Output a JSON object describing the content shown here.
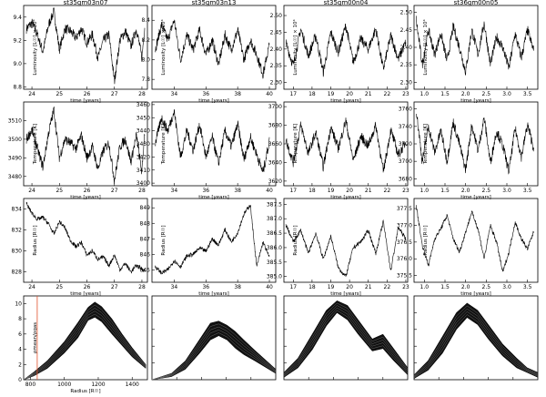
{
  "chart_data": [
    {
      "type": "line",
      "row": 0,
      "col": 0,
      "title": "st35gm03n07",
      "xlabel": "time [years]",
      "ylabel": "Luminosity [L☉] × 10⁴",
      "xlim": [
        23.7,
        28.2
      ],
      "ylim": [
        8.78,
        9.5
      ],
      "xticks": [
        "24",
        "25",
        "26",
        "27",
        "28"
      ],
      "yticks": [
        "8.8",
        "9.0",
        "9.2",
        "9.4"
      ],
      "x": [
        23.8,
        24.0,
        24.2,
        24.4,
        24.6,
        24.8,
        25.0,
        25.2,
        25.4,
        25.6,
        25.8,
        26.0,
        26.2,
        26.4,
        26.6,
        26.8,
        27.0,
        27.2,
        27.4,
        27.6,
        27.8,
        28.0,
        28.1
      ],
      "y": [
        9.3,
        9.35,
        9.25,
        9.1,
        9.33,
        9.45,
        9.12,
        9.3,
        9.28,
        9.22,
        9.3,
        9.18,
        9.25,
        9.05,
        9.2,
        9.25,
        8.85,
        9.2,
        9.28,
        9.15,
        9.3,
        9.05,
        9.32
      ]
    },
    {
      "type": "line",
      "row": 0,
      "col": 1,
      "title": "st35gm03n13",
      "xlabel": "time [years]",
      "ylabel": "Luminosity [L☉] × 10⁴",
      "xlim": [
        32.6,
        40.4
      ],
      "ylim": [
        7.7,
        8.55
      ],
      "xticks": [
        "34",
        "36",
        "38",
        "40"
      ],
      "yticks": [
        "7.8",
        "8.0",
        "8.2",
        "8.4"
      ],
      "x": [
        32.8,
        33.2,
        33.6,
        34.0,
        34.4,
        34.8,
        35.2,
        35.6,
        36.0,
        36.4,
        36.8,
        37.2,
        37.6,
        38.0,
        38.4,
        38.8,
        39.2,
        39.6,
        40.0
      ],
      "y": [
        8.1,
        8.35,
        8.2,
        8.4,
        8.0,
        8.25,
        8.1,
        8.3,
        8.05,
        8.2,
        7.95,
        8.25,
        8.1,
        8.3,
        8.0,
        8.2,
        8.05,
        7.85,
        8.15
      ]
    },
    {
      "type": "line",
      "row": 0,
      "col": 2,
      "title": "st35gm00n04",
      "xlabel": "time [years]",
      "ylabel": "Luminosity [L☉] × 10⁴",
      "xlim": [
        16.5,
        23.1
      ],
      "ylim": [
        2.28,
        2.53
      ],
      "xticks": [
        "17",
        "18",
        "19",
        "20",
        "21",
        "22",
        "23"
      ],
      "yticks": [
        "2.30",
        "2.35",
        "2.40",
        "2.45",
        "2.50"
      ],
      "x": [
        16.6,
        17.0,
        17.4,
        17.8,
        18.2,
        18.6,
        19.0,
        19.4,
        19.8,
        20.2,
        20.6,
        21.0,
        21.4,
        21.8,
        22.2,
        22.6,
        23.0
      ],
      "y": [
        2.42,
        2.35,
        2.46,
        2.38,
        2.44,
        2.33,
        2.45,
        2.39,
        2.47,
        2.36,
        2.43,
        2.4,
        2.46,
        2.34,
        2.44,
        2.37,
        2.42
      ]
    },
    {
      "type": "line",
      "row": 0,
      "col": 3,
      "title": "st36gm00n05",
      "xlabel": "time [years]",
      "ylabel": "Luminosity [L☉] × 10⁴",
      "xlim": [
        0.75,
        3.75
      ],
      "ylim": [
        2.28,
        2.52
      ],
      "xticks": [
        "1.0",
        "1.5",
        "2.0",
        "2.5",
        "3.0",
        "3.5"
      ],
      "yticks": [
        "2.30",
        "2.35",
        "2.40",
        "2.45",
        "2.50"
      ],
      "x": [
        0.8,
        0.95,
        1.1,
        1.25,
        1.4,
        1.55,
        1.7,
        1.85,
        2.0,
        2.15,
        2.3,
        2.45,
        2.6,
        2.75,
        2.9,
        3.05,
        3.2,
        3.35,
        3.5,
        3.65
      ],
      "y": [
        2.48,
        2.35,
        2.45,
        2.38,
        2.44,
        2.36,
        2.46,
        2.4,
        2.33,
        2.45,
        2.38,
        2.47,
        2.35,
        2.43,
        2.4,
        2.34,
        2.44,
        2.37,
        2.45,
        2.39
      ]
    },
    {
      "type": "line",
      "row": 1,
      "col": 0,
      "xlabel": "time [years]",
      "ylabel": "Temperature [K]",
      "xlim": [
        23.7,
        28.2
      ],
      "ylim": [
        3475,
        3520
      ],
      "xticks": [
        "24",
        "25",
        "26",
        "27",
        "28"
      ],
      "yticks": [
        "3480",
        "3490",
        "3500",
        "3510"
      ],
      "x": [
        23.8,
        24.0,
        24.2,
        24.4,
        24.6,
        24.8,
        25.0,
        25.2,
        25.4,
        25.6,
        25.8,
        26.0,
        26.2,
        26.4,
        26.6,
        26.8,
        27.0,
        27.2,
        27.4,
        27.6,
        27.8,
        28.0,
        28.1
      ],
      "y": [
        3500,
        3505,
        3495,
        3485,
        3503,
        3516,
        3490,
        3500,
        3498,
        3495,
        3502,
        3490,
        3496,
        3484,
        3494,
        3498,
        3478,
        3496,
        3500,
        3488,
        3502,
        3482,
        3504
      ]
    },
    {
      "type": "line",
      "row": 1,
      "col": 1,
      "xlabel": "time [years]",
      "ylabel": "Temperature [K]",
      "xlim": [
        32.6,
        40.4
      ],
      "ylim": [
        3398,
        3462
      ],
      "xticks": [
        "34",
        "36",
        "38",
        "40"
      ],
      "yticks": [
        "3400",
        "3410",
        "3420",
        "3430",
        "3440",
        "3450",
        "3460"
      ],
      "x": [
        32.8,
        33.2,
        33.6,
        34.0,
        34.4,
        34.8,
        35.2,
        35.6,
        36.0,
        36.4,
        36.8,
        37.2,
        37.6,
        38.0,
        38.4,
        38.8,
        39.2,
        39.6,
        40.0
      ],
      "y": [
        3430,
        3450,
        3440,
        3455,
        3420,
        3440,
        3425,
        3445,
        3420,
        3435,
        3415,
        3440,
        3428,
        3445,
        3418,
        3435,
        3422,
        3408,
        3432
      ]
    },
    {
      "type": "line",
      "row": 1,
      "col": 2,
      "xlabel": "time [years]",
      "ylabel": "Temperature [K]",
      "xlim": [
        16.5,
        23.1
      ],
      "ylim": [
        3615,
        3705
      ],
      "xticks": [
        "17",
        "18",
        "19",
        "20",
        "21",
        "22",
        "23"
      ],
      "yticks": [
        "3620",
        "3640",
        "3660",
        "3680",
        "3700"
      ],
      "x": [
        16.6,
        17.0,
        17.4,
        17.8,
        18.2,
        18.6,
        19.0,
        19.4,
        19.8,
        20.2,
        20.6,
        21.0,
        21.4,
        21.8,
        22.2,
        22.6,
        23.0
      ],
      "y": [
        3665,
        3640,
        3680,
        3650,
        3672,
        3635,
        3678,
        3655,
        3685,
        3642,
        3668,
        3658,
        3680,
        3630,
        3675,
        3648,
        3662
      ]
    },
    {
      "type": "line",
      "row": 1,
      "col": 3,
      "xlabel": "time [years]",
      "ylabel": "Temperature [K]",
      "xlim": [
        0.75,
        3.75
      ],
      "ylim": [
        3672,
        3768
      ],
      "xticks": [
        "1.0",
        "1.5",
        "2.0",
        "2.5",
        "3.0",
        "3.5"
      ],
      "yticks": [
        "3680",
        "3700",
        "3720",
        "3740",
        "3760"
      ],
      "x": [
        0.8,
        0.95,
        1.1,
        1.25,
        1.4,
        1.55,
        1.7,
        1.85,
        2.0,
        2.15,
        2.3,
        2.45,
        2.6,
        2.75,
        2.9,
        3.05,
        3.2,
        3.35,
        3.5,
        3.65
      ],
      "y": [
        3760,
        3700,
        3740,
        3710,
        3735,
        3700,
        3745,
        3720,
        3690,
        3742,
        3712,
        3750,
        3698,
        3735,
        3718,
        3688,
        3738,
        3705,
        3742,
        3715
      ]
    },
    {
      "type": "line",
      "row": 2,
      "col": 0,
      "xlabel": "time [years]",
      "ylabel": "Radius [R☉]",
      "xlim": [
        23.7,
        28.2
      ],
      "ylim": [
        827,
        835
      ],
      "xticks": [
        "24",
        "25",
        "26",
        "27",
        "28"
      ],
      "yticks": [
        "828",
        "830",
        "832",
        "834"
      ],
      "x": [
        23.8,
        24.0,
        24.2,
        24.4,
        24.6,
        24.8,
        25.0,
        25.2,
        25.4,
        25.6,
        25.8,
        26.0,
        26.2,
        26.4,
        26.6,
        26.8,
        27.0,
        27.2,
        27.4,
        27.6,
        27.8,
        28.0,
        28.1
      ],
      "y": [
        834.5,
        833.6,
        833.0,
        833.2,
        832.6,
        831.6,
        832.8,
        832.2,
        831.0,
        830.4,
        830.8,
        829.6,
        830.0,
        829.2,
        829.4,
        828.6,
        829.6,
        828.2,
        828.8,
        828.0,
        828.6,
        828.3,
        828.1
      ]
    },
    {
      "type": "line",
      "row": 2,
      "col": 1,
      "xlabel": "time [years]",
      "ylabel": "Radius [R☉]",
      "xlim": [
        32.6,
        40.4
      ],
      "ylim": [
        844.2,
        849.6
      ],
      "xticks": [
        "34",
        "36",
        "38",
        "40"
      ],
      "yticks": [
        "845",
        "846",
        "847",
        "848",
        "849"
      ],
      "x": [
        32.8,
        33.2,
        33.6,
        34.0,
        34.4,
        34.8,
        35.2,
        35.6,
        36.0,
        36.4,
        36.8,
        37.2,
        37.6,
        38.0,
        38.4,
        38.8,
        39.2,
        39.6,
        40.0
      ],
      "y": [
        845.2,
        844.8,
        845.0,
        845.6,
        845.2,
        845.9,
        846.0,
        846.4,
        846.2,
        847.0,
        846.6,
        847.6,
        846.8,
        847.4,
        848.6,
        849.2,
        845.2,
        846.8,
        845.8
      ]
    },
    {
      "type": "line",
      "row": 2,
      "col": 2,
      "xlabel": "time [years]",
      "ylabel": "Radius [R☉]",
      "xlim": [
        16.5,
        23.1
      ],
      "ylim": [
        384.8,
        387.7
      ],
      "xticks": [
        "17",
        "18",
        "19",
        "20",
        "21",
        "22",
        "23"
      ],
      "yticks": [
        "385.0",
        "385.5",
        "386.0",
        "386.5",
        "387.0",
        "387.5"
      ],
      "x": [
        16.6,
        17.0,
        17.4,
        17.8,
        18.2,
        18.6,
        19.0,
        19.4,
        19.8,
        20.2,
        20.6,
        21.0,
        21.4,
        21.8,
        22.2,
        22.6,
        23.0
      ],
      "y": [
        386.8,
        386.2,
        386.6,
        385.8,
        386.5,
        385.6,
        386.4,
        385.3,
        385.0,
        386.0,
        386.2,
        386.6,
        385.8,
        386.9,
        385.2,
        386.7,
        386.3
      ]
    },
    {
      "type": "line",
      "row": 2,
      "col": 3,
      "xlabel": "time [years]",
      "ylabel": "Radius [R☉]",
      "xlim": [
        0.75,
        3.75
      ],
      "ylim": [
        375.3,
        377.8
      ],
      "xticks": [
        "1.0",
        "1.5",
        "2.0",
        "2.5",
        "3.0",
        "3.5"
      ],
      "yticks": [
        "375.5",
        "376.0",
        "376.5",
        "377.0",
        "377.5"
      ],
      "x": [
        0.8,
        0.95,
        1.1,
        1.25,
        1.4,
        1.55,
        1.7,
        1.85,
        2.0,
        2.15,
        2.3,
        2.45,
        2.6,
        2.75,
        2.9,
        3.05,
        3.2,
        3.35,
        3.5,
        3.65
      ],
      "y": [
        377.6,
        376.4,
        375.8,
        376.6,
        376.9,
        377.3,
        376.6,
        376.2,
        376.8,
        377.4,
        376.9,
        376.0,
        377.0,
        376.5,
        375.6,
        376.2,
        377.1,
        376.6,
        376.3,
        376.8
      ]
    },
    {
      "type": "area",
      "row": 3,
      "col": 0,
      "xlabel": "Radius [R☉]",
      "ylabel": "ρmean/ρgas",
      "xlim": [
        760,
        1490
      ],
      "ylim": [
        0,
        11
      ],
      "xticks": [
        "800",
        "1000",
        "1200",
        "1400"
      ],
      "yticks": [
        "0",
        "2",
        "4",
        "6",
        "8",
        "10"
      ],
      "x": [
        760,
        820,
        900,
        1000,
        1080,
        1140,
        1180,
        1220,
        1280,
        1340,
        1400,
        1480
      ],
      "y_low": [
        0,
        0.5,
        1.5,
        3.5,
        5.5,
        7.8,
        8.2,
        7.6,
        6.0,
        4.5,
        3.0,
        1.5
      ],
      "y_high": [
        0,
        1.0,
        2.5,
        5.0,
        7.5,
        9.5,
        10.2,
        9.6,
        8.0,
        6.0,
        4.2,
        2.0
      ],
      "vline_x": 840
    },
    {
      "type": "area",
      "row": 3,
      "col": 1,
      "xlabel": "",
      "ylabel": "",
      "xlim": [
        760,
        1650
      ],
      "ylim": [
        0,
        8
      ],
      "xticks": [],
      "yticks": [],
      "x": [
        760,
        900,
        1000,
        1100,
        1180,
        1240,
        1300,
        1360,
        1420,
        1500,
        1600,
        1650
      ],
      "y_low": [
        0,
        0.3,
        1.0,
        2.5,
        3.8,
        4.2,
        3.8,
        3.0,
        2.4,
        1.8,
        1.0,
        0.6
      ],
      "y_high": [
        0,
        0.6,
        1.8,
        3.8,
        5.4,
        5.6,
        5.2,
        4.6,
        3.8,
        2.8,
        1.6,
        1.0
      ]
    },
    {
      "type": "area",
      "row": 3,
      "col": 2,
      "xlabel": "",
      "ylabel": "",
      "xlim": [
        300,
        650
      ],
      "ylim": [
        0,
        7
      ],
      "xticks": [],
      "yticks": [],
      "x": [
        300,
        340,
        380,
        420,
        450,
        480,
        510,
        550,
        580,
        610,
        650
      ],
      "y_low": [
        0.2,
        1.0,
        2.5,
        4.5,
        5.6,
        5.0,
        3.8,
        2.4,
        2.6,
        1.6,
        0.4
      ],
      "y_high": [
        0.6,
        1.8,
        3.8,
        5.8,
        6.6,
        6.2,
        5.0,
        3.4,
        3.8,
        2.6,
        1.0
      ]
    },
    {
      "type": "area",
      "row": 3,
      "col": 3,
      "xlabel": "",
      "ylabel": "",
      "xlim": [
        300,
        650
      ],
      "ylim": [
        0,
        7
      ],
      "xticks": [],
      "yticks": [],
      "x": [
        300,
        340,
        380,
        420,
        450,
        480,
        510,
        550,
        590,
        620,
        650
      ],
      "y_low": [
        0.1,
        0.8,
        2.2,
        4.2,
        5.2,
        4.6,
        3.4,
        2.0,
        1.0,
        0.6,
        0.2
      ],
      "y_high": [
        0.4,
        1.6,
        3.6,
        5.6,
        6.4,
        5.8,
        4.6,
        3.0,
        1.8,
        1.0,
        0.6
      ]
    }
  ]
}
